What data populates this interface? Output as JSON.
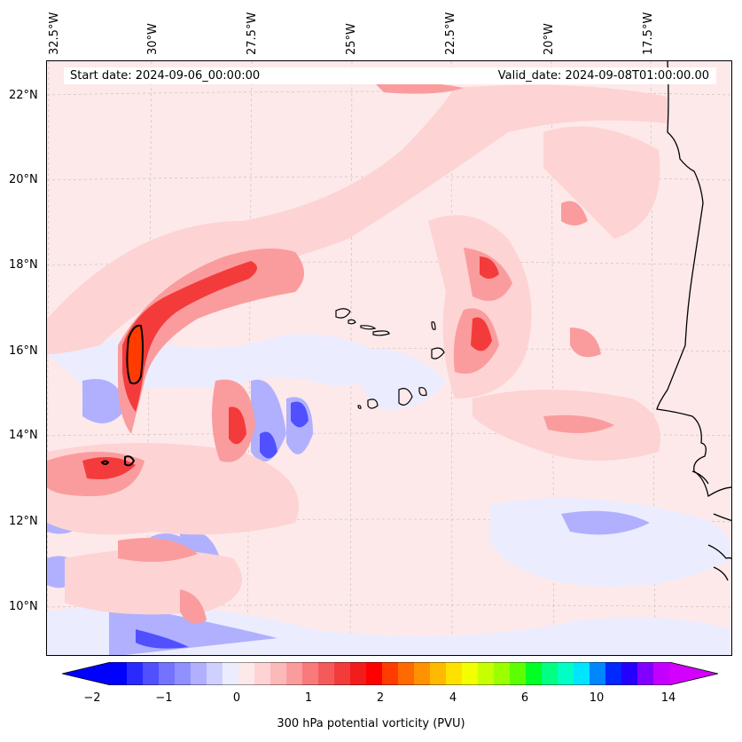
{
  "header": {
    "start_date": "Start date: 2024-09-06_00:00:00",
    "valid_date": "Valid_date: 2024-09-08T01:00:00.00"
  },
  "axes": {
    "lon_labels": [
      "32.5°W",
      "30°W",
      "27.5°W",
      "25°W",
      "22.5°W",
      "20°W",
      "17.5°W"
    ],
    "lat_labels": [
      "22°N",
      "20°N",
      "18°N",
      "16°N",
      "14°N",
      "12°N",
      "10°N"
    ],
    "lon_values": [
      -32.5,
      -30,
      -27.5,
      -25,
      -22.5,
      -20,
      -17.5
    ],
    "lat_values": [
      22,
      20,
      18,
      16,
      14,
      12,
      10
    ],
    "gridlines": true
  },
  "colorbar": {
    "label": "300 hPa potential vorticity (PVU)",
    "tick_labels": [
      "−2",
      "−1",
      "0",
      "1",
      "2",
      "4",
      "6",
      "10",
      "14"
    ],
    "colors": [
      "#0000ff",
      "#2a2aff",
      "#5050ff",
      "#7373ff",
      "#9090ff",
      "#b0b0ff",
      "#d0d0ff",
      "#ececff",
      "#fde9ea",
      "#fdd3d4",
      "#fcb9ba",
      "#fa9c9d",
      "#f87a7b",
      "#f55a5b",
      "#f43b3c",
      "#f21c1d",
      "#ff0000",
      "#ff3b00",
      "#ff6a00",
      "#ff9200",
      "#ffb900",
      "#ffe100",
      "#f3ff00",
      "#c7ff00",
      "#9bff00",
      "#5dff00",
      "#00ff25",
      "#00ff83",
      "#00ffc5",
      "#00e5ff",
      "#0086ff",
      "#0028ff",
      "#2500ff",
      "#8200ff",
      "#c300ff"
    ],
    "extend_left_color": "#0000ff",
    "extend_right_color": "#d400ff"
  },
  "map": {
    "region": "Eastern tropical Atlantic / Cabo Verde / West Africa coast",
    "background_color": "#fde9ea"
  }
}
